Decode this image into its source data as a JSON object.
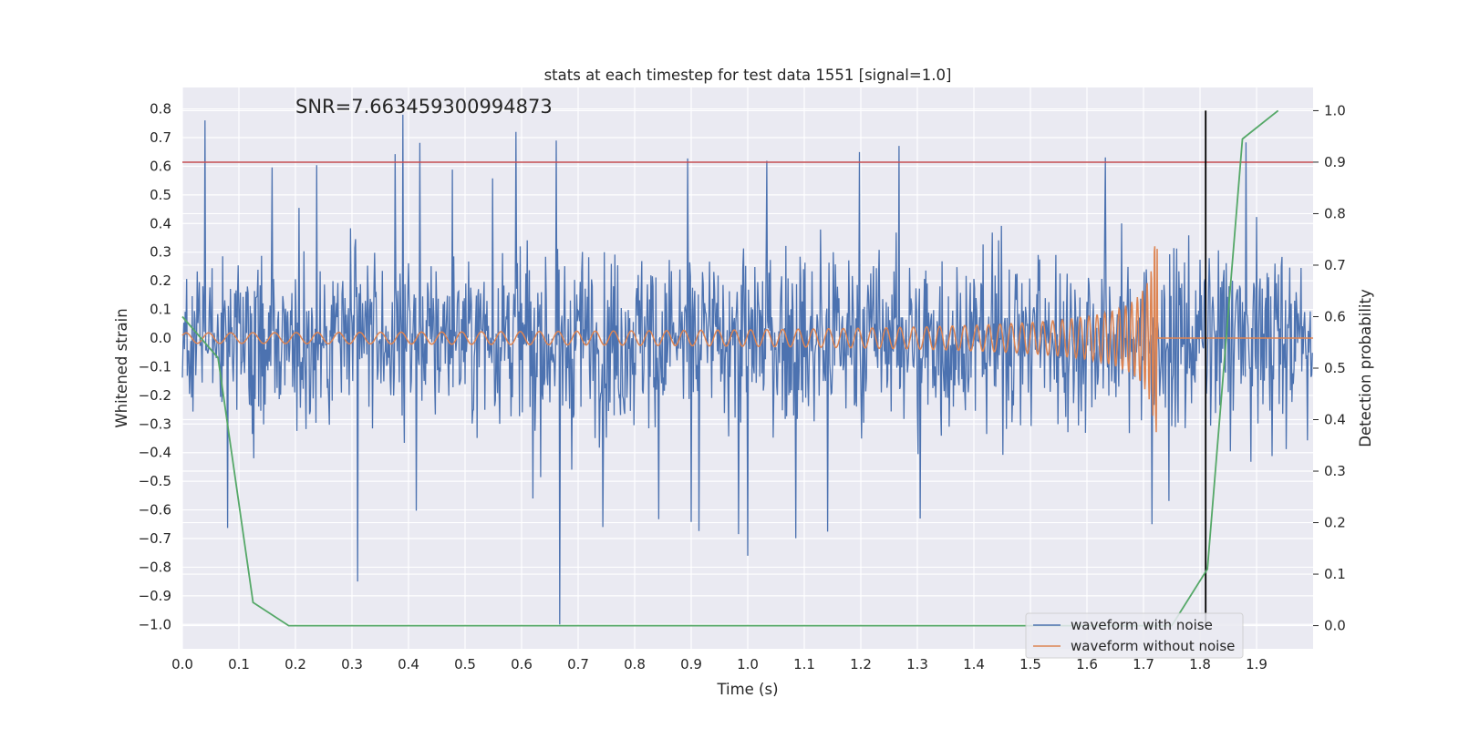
{
  "chart_data": {
    "type": "line",
    "title": "stats at each timestep for test data 1551 [signal=1.0]",
    "xlabel": "Time (s)",
    "ylabel": "Whitened strain",
    "y2label": "Detection probability",
    "annotation": "SNR=7.663459300994873",
    "xlim": [
      0.0,
      2.0
    ],
    "ylim": [
      -1.085,
      0.875
    ],
    "y2lim": [
      -0.045,
      1.045
    ],
    "xticks": [
      "0.0",
      "0.1",
      "0.2",
      "0.3",
      "0.4",
      "0.5",
      "0.6",
      "0.7",
      "0.8",
      "0.9",
      "1.0",
      "1.1",
      "1.2",
      "1.3",
      "1.4",
      "1.5",
      "1.6",
      "1.7",
      "1.8",
      "1.9"
    ],
    "yticks": [
      "0.8",
      "0.7",
      "0.6",
      "0.5",
      "0.4",
      "0.3",
      "0.2",
      "0.1",
      "0.0",
      "−0.1",
      "−0.2",
      "−0.3",
      "−0.4",
      "−0.5",
      "−0.6",
      "−0.7",
      "−0.8",
      "−0.9",
      "−1.0"
    ],
    "y2ticks": [
      "1.0",
      "0.9",
      "0.8",
      "0.7",
      "0.6",
      "0.5",
      "0.4",
      "0.3",
      "0.2",
      "0.1",
      "0.0"
    ],
    "grid": true,
    "legend_position": "lower-right",
    "colors": {
      "noise": "#4c72b0",
      "clean": "#dd8452",
      "prob": "#55a868",
      "threshold": "#c44e52",
      "marker": "#000000",
      "background": "#eaeaf2",
      "grid": "#ffffff"
    },
    "series": [
      {
        "name": "waveform with noise",
        "description": "dense whitened strain noise, values mostly within -0.5 to 0.5 with spikes",
        "max": 0.78,
        "min": -1.0,
        "notable_peaks": [
          {
            "x": 0.04,
            "y": 0.76
          },
          {
            "x": 0.39,
            "y": 0.78
          },
          {
            "x": 0.59,
            "y": 0.72
          },
          {
            "x": 0.31,
            "y": -0.85
          },
          {
            "x": 0.667,
            "y": -1.0
          },
          {
            "x": 1.0,
            "y": -0.76
          }
        ]
      },
      {
        "name": "waveform without noise",
        "description": "chirp signal, amplitude growing from ~0.02 to ~0.35 near merger at ~1.72 s, then flat 0",
        "merger_time": 1.725,
        "peak_amplitude": 0.35
      },
      {
        "axis": "right",
        "x": [
          0.0,
          0.063,
          0.125,
          0.188,
          0.25,
          0.313,
          0.375,
          0.438,
          0.5,
          0.563,
          0.625,
          0.688,
          0.75,
          0.813,
          0.875,
          0.938,
          1.0,
          1.063,
          1.125,
          1.188,
          1.25,
          1.313,
          1.375,
          1.438,
          1.5,
          1.563,
          1.625,
          1.688,
          1.75,
          1.813,
          1.875,
          1.938
        ],
        "values": [
          0.6,
          0.52,
          0.045,
          0.0,
          0.0,
          0.0,
          0.0,
          0.0,
          0.0,
          0.0,
          0.0,
          0.0,
          0.0,
          0.0,
          0.0,
          0.0,
          0.0,
          0.0,
          0.0,
          0.0,
          0.0,
          0.0,
          0.0,
          0.0,
          0.0,
          0.0,
          0.0,
          0.0,
          0.0,
          0.11,
          0.945,
          1.0
        ]
      }
    ],
    "threshold": {
      "axis": "right",
      "value": 0.9
    },
    "vertical_marker": {
      "x": 1.81,
      "y2_range": [
        0.0,
        1.0
      ]
    }
  }
}
